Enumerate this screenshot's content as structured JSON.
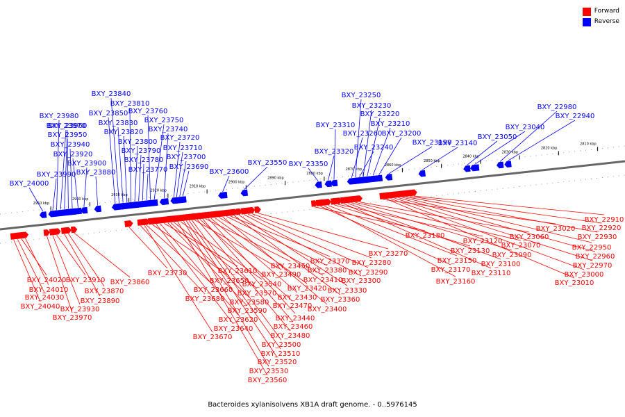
{
  "title": "Bacteroides xylanisolvens XB1A draft genome. - 0..5976145",
  "legend": [
    {
      "label": "Forward",
      "color": "#ff0000"
    },
    {
      "label": "Reverse",
      "color": "#0000ff"
    }
  ],
  "ticks": [
    {
      "pos": 2950,
      "label": "2950 kbp"
    },
    {
      "pos": 2940,
      "label": "2940 kbp"
    },
    {
      "pos": 2930,
      "label": "2930 kbp"
    },
    {
      "pos": 2920,
      "label": "2920 kbp"
    },
    {
      "pos": 2910,
      "label": "2910 kbp"
    },
    {
      "pos": 2900,
      "label": "2900 kbp"
    },
    {
      "pos": 2890,
      "label": "2890 kbp"
    },
    {
      "pos": 2880,
      "label": "2880 kbp"
    },
    {
      "pos": 2870,
      "label": "2870 kbp"
    },
    {
      "pos": 2860,
      "label": "2860 kbp"
    },
    {
      "pos": 2850,
      "label": "2850 kbp"
    },
    {
      "pos": 2840,
      "label": "2840 kbp"
    },
    {
      "pos": 2830,
      "label": "2830 kbp"
    },
    {
      "pos": 2820,
      "label": "2820 kbp"
    },
    {
      "pos": 2810,
      "label": "2810 kbp"
    }
  ],
  "reverse_genes": [
    {
      "name": "BXY_24000",
      "pos": 2952.0
    },
    {
      "name": "BXY_23990",
      "pos": 2949.5
    },
    {
      "name": "BXY_23980",
      "pos": 2948.5
    },
    {
      "name": "BXY_23970",
      "pos": 2947.5
    },
    {
      "name": "BXY_23960",
      "pos": 2946.5
    },
    {
      "name": "BXY_23950",
      "pos": 2945.5
    },
    {
      "name": "BXY_23940",
      "pos": 2944.5
    },
    {
      "name": "BXY_23920",
      "pos": 2943.0
    },
    {
      "name": "BXY_23900",
      "pos": 2941.5
    },
    {
      "name": "BXY_23880",
      "pos": 2938.0
    },
    {
      "name": "BXY_23850",
      "pos": 2933.5
    },
    {
      "name": "BXY_23840",
      "pos": 2932.5
    },
    {
      "name": "BXY_23830",
      "pos": 2931.5
    },
    {
      "name": "BXY_23820",
      "pos": 2930.5
    },
    {
      "name": "BXY_23810",
      "pos": 2929.5
    },
    {
      "name": "BXY_23800",
      "pos": 2928.5
    },
    {
      "name": "BXY_23790",
      "pos": 2927.5
    },
    {
      "name": "BXY_23780",
      "pos": 2926.5
    },
    {
      "name": "BXY_23770",
      "pos": 2925.5
    },
    {
      "name": "BXY_23760",
      "pos": 2924.5
    },
    {
      "name": "BXY_23750",
      "pos": 2923.5
    },
    {
      "name": "BXY_23740",
      "pos": 2921.0
    },
    {
      "name": "BXY_23720",
      "pos": 2918.5
    },
    {
      "name": "BXY_23710",
      "pos": 2917.8
    },
    {
      "name": "BXY_23700",
      "pos": 2917.0
    },
    {
      "name": "BXY_23690",
      "pos": 2916.2
    },
    {
      "name": "BXY_23600",
      "pos": 2906.0
    },
    {
      "name": "BXY_23550",
      "pos": 2900.5
    },
    {
      "name": "BXY_23350",
      "pos": 2881.5
    },
    {
      "name": "BXY_23320",
      "pos": 2879.0
    },
    {
      "name": "BXY_23310",
      "pos": 2877.5
    },
    {
      "name": "BXY_23260",
      "pos": 2873.0
    },
    {
      "name": "BXY_23250",
      "pos": 2872.0
    },
    {
      "name": "BXY_23240",
      "pos": 2871.0
    },
    {
      "name": "BXY_23230",
      "pos": 2870.0
    },
    {
      "name": "BXY_23220",
      "pos": 2869.0
    },
    {
      "name": "BXY_23210",
      "pos": 2867.5
    },
    {
      "name": "BXY_23200",
      "pos": 2866.0
    },
    {
      "name": "BXY_23190",
      "pos": 2863.5
    },
    {
      "name": "BXY_23140",
      "pos": 2855.0
    },
    {
      "name": "BXY_23050",
      "pos": 2843.5
    },
    {
      "name": "BXY_23040",
      "pos": 2841.5
    },
    {
      "name": "BXY_22980",
      "pos": 2835.0
    },
    {
      "name": "BXY_22940",
      "pos": 2833.0
    }
  ],
  "forward_genes": [
    {
      "name": "BXY_24040",
      "pos": 2959.5
    },
    {
      "name": "BXY_24030",
      "pos": 2958.5
    },
    {
      "name": "BXY_24020",
      "pos": 2957.5
    },
    {
      "name": "BXY_24010",
      "pos": 2956.5
    },
    {
      "name": "BXY_23970",
      "pos": 2951.0
    },
    {
      "name": "BXY_23930",
      "pos": 2949.5
    },
    {
      "name": "BXY_23910",
      "pos": 2948.5
    },
    {
      "name": "BXY_23890",
      "pos": 2946.5
    },
    {
      "name": "BXY_23870",
      "pos": 2945.5
    },
    {
      "name": "BXY_23860",
      "pos": 2944.0
    },
    {
      "name": "BXY_23730",
      "pos": 2930.0
    },
    {
      "name": "BXY_23680",
      "pos": 2927.0
    },
    {
      "name": "BXY_23670",
      "pos": 2926.0
    },
    {
      "name": "BXY_23660",
      "pos": 2925.5
    },
    {
      "name": "BXY_23650",
      "pos": 2924.0
    },
    {
      "name": "BXY_23640",
      "pos": 2923.0
    },
    {
      "name": "BXY_23620",
      "pos": 2922.0
    },
    {
      "name": "BXY_23610",
      "pos": 2921.0
    },
    {
      "name": "BXY_23590",
      "pos": 2920.0
    },
    {
      "name": "BXY_23580",
      "pos": 2919.3
    },
    {
      "name": "BXY_23570",
      "pos": 2918.5
    },
    {
      "name": "BXY_23560",
      "pos": 2917.5
    },
    {
      "name": "BXY_23540",
      "pos": 2916.8
    },
    {
      "name": "BXY_23530",
      "pos": 2916.0
    },
    {
      "name": "BXY_23520",
      "pos": 2915.3
    },
    {
      "name": "BXY_23510",
      "pos": 2914.6
    },
    {
      "name": "BXY_23500",
      "pos": 2913.9
    },
    {
      "name": "BXY_23490",
      "pos": 2913.2
    },
    {
      "name": "BXY_23480",
      "pos": 2912.5
    },
    {
      "name": "BXY_23470",
      "pos": 2911.8
    },
    {
      "name": "BXY_23460",
      "pos": 2911.1
    },
    {
      "name": "BXY_23450",
      "pos": 2910.4
    },
    {
      "name": "BXY_23440",
      "pos": 2909.7
    },
    {
      "name": "BXY_23430",
      "pos": 2909.0
    },
    {
      "name": "BXY_23420",
      "pos": 2908.0
    },
    {
      "name": "BXY_23410",
      "pos": 2907.0
    },
    {
      "name": "BXY_23400",
      "pos": 2906.0
    },
    {
      "name": "BXY_23380",
      "pos": 2905.0
    },
    {
      "name": "BXY_23370",
      "pos": 2904.0
    },
    {
      "name": "BXY_23360",
      "pos": 2903.0
    },
    {
      "name": "BXY_23330",
      "pos": 2901.8
    },
    {
      "name": "BXY_23300",
      "pos": 2900.5
    },
    {
      "name": "BXY_23290",
      "pos": 2899.5
    },
    {
      "name": "BXY_23280",
      "pos": 2898.5
    },
    {
      "name": "BXY_23270",
      "pos": 2897.0
    },
    {
      "name": "BXY_23180",
      "pos": 2882.5
    },
    {
      "name": "BXY_23170",
      "pos": 2881.0
    },
    {
      "name": "BXY_23160",
      "pos": 2880.0
    },
    {
      "name": "BXY_23150",
      "pos": 2879.0
    },
    {
      "name": "BXY_23130",
      "pos": 2877.5
    },
    {
      "name": "BXY_23120",
      "pos": 2876.5
    },
    {
      "name": "BXY_23110",
      "pos": 2875.0
    },
    {
      "name": "BXY_23100",
      "pos": 2874.0
    },
    {
      "name": "BXY_23090",
      "pos": 2873.0
    },
    {
      "name": "BXY_23070",
      "pos": 2872.0
    },
    {
      "name": "BXY_23060",
      "pos": 2871.0
    },
    {
      "name": "BXY_23020",
      "pos": 2865.0
    },
    {
      "name": "BXY_23010",
      "pos": 2864.0
    },
    {
      "name": "BXY_23000",
      "pos": 2863.0
    },
    {
      "name": "BXY_22970",
      "pos": 2862.0
    },
    {
      "name": "BXY_22960",
      "pos": 2861.0
    },
    {
      "name": "BXY_22950",
      "pos": 2860.0
    },
    {
      "name": "BXY_22930",
      "pos": 2859.0
    },
    {
      "name": "BXY_22920",
      "pos": 2858.0
    },
    {
      "name": "BXY_22910",
      "pos": 2857.0
    }
  ]
}
